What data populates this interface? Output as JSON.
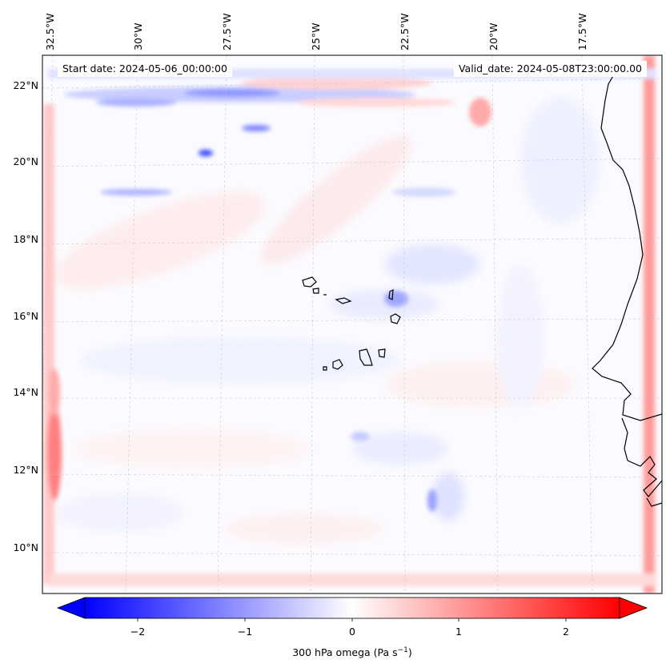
{
  "annotations": {
    "start_date": "Start date: 2024-05-06_00:00:00",
    "valid_date": "Valid_date: 2024-05-08T23:00:00.00"
  },
  "map": {
    "longitude_labels": [
      "32.5°W",
      "30°W",
      "27.5°W",
      "25°W",
      "22.5°W",
      "20°W",
      "17.5°W"
    ],
    "latitude_labels": [
      "22°N",
      "20°N",
      "18°N",
      "16°N",
      "14°N",
      "12°N",
      "10°N"
    ],
    "field": "300 hPa omega",
    "colormap": "bwr"
  },
  "colorbar": {
    "tick_labels": [
      "−2",
      "−1",
      "0",
      "1",
      "2"
    ],
    "label_text": "300 hPa omega (Pa s",
    "label_exponent": "−1",
    "label_close": ")",
    "min": -2.6,
    "max": 2.6,
    "colors": {
      "negative": "#0000ff",
      "zero": "#ffffff",
      "positive": "#ff0000"
    }
  }
}
